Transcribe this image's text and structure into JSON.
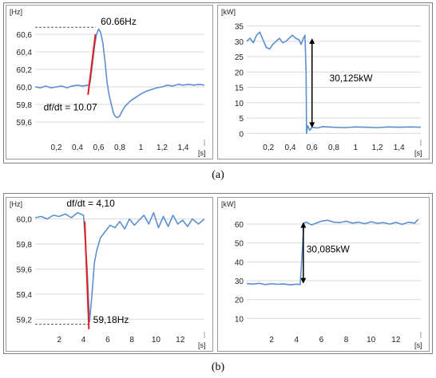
{
  "captions": {
    "a": "(a)",
    "b": "(b)"
  },
  "colors": {
    "series": "#5b8fd0",
    "tangent": "#e02020",
    "grid": "#d9d9d9",
    "arrow": "#000000",
    "guide": "#555555"
  },
  "chart_data": [
    {
      "id": "a-freq",
      "type": "line",
      "yunit": "[Hz]",
      "xunit": "[s]",
      "xlim": [
        0,
        1.6
      ],
      "ylim": [
        59.4,
        60.8
      ],
      "xticks": [
        "0,2",
        "0,4",
        "0,6",
        "0,8",
        "1",
        "1,2",
        "1,4"
      ],
      "xtickvals": [
        0.2,
        0.4,
        0.6,
        0.8,
        1.0,
        1.2,
        1.4
      ],
      "yticks": [
        "59,6",
        "59,8",
        "60,0",
        "60,2",
        "60,4",
        "60,6"
      ],
      "ytickvals": [
        59.6,
        59.8,
        60.0,
        60.2,
        60.4,
        60.6
      ],
      "grid": "horizontal",
      "series": [
        {
          "x": [
            0,
            0.05,
            0.1,
            0.15,
            0.2,
            0.25,
            0.3,
            0.35,
            0.4,
            0.45,
            0.5,
            0.52,
            0.54,
            0.56,
            0.58,
            0.6,
            0.62,
            0.64,
            0.66,
            0.68,
            0.7,
            0.72,
            0.74,
            0.76,
            0.78,
            0.8,
            0.82,
            0.85,
            0.9,
            0.95,
            1.0,
            1.05,
            1.1,
            1.15,
            1.2,
            1.25,
            1.3,
            1.35,
            1.4,
            1.45,
            1.5,
            1.55,
            1.6
          ],
          "y": [
            60.0,
            59.99,
            60.01,
            59.99,
            60.0,
            60.01,
            59.99,
            60.01,
            60.02,
            60.01,
            60.02,
            60.05,
            60.25,
            60.45,
            60.6,
            60.66,
            60.62,
            60.5,
            60.3,
            60.05,
            59.9,
            59.8,
            59.7,
            59.66,
            59.65,
            59.67,
            59.72,
            59.78,
            59.84,
            59.88,
            59.92,
            59.95,
            59.97,
            59.99,
            60.0,
            60.02,
            60.01,
            60.03,
            60.02,
            60.03,
            60.02,
            60.03,
            60.02
          ]
        }
      ],
      "tangent": {
        "x": [
          0.5,
          0.57
        ],
        "y": [
          59.91,
          60.6
        ]
      },
      "annotations": [
        {
          "text": "60.66Hz",
          "x": 0.62,
          "y": 60.71
        },
        {
          "text": "df/dt = 10.07",
          "x": 0.08,
          "y": 59.73
        }
      ],
      "guide_y": 60.68
    },
    {
      "id": "a-power",
      "type": "line",
      "yunit": "[kW]",
      "xunit": "[s]",
      "xlim": [
        0,
        1.6
      ],
      "ylim": [
        -2,
        38
      ],
      "xticks": [
        "0,2",
        "0,4",
        "0,6",
        "0,8",
        "1",
        "1,2",
        "1,4"
      ],
      "xtickvals": [
        0.2,
        0.4,
        0.6,
        0.8,
        1.0,
        1.2,
        1.4
      ],
      "yticks": [
        "0",
        "5",
        "10",
        "15",
        "20",
        "25",
        "30",
        "35"
      ],
      "ytickvals": [
        0,
        5,
        10,
        15,
        20,
        25,
        30,
        35
      ],
      "grid": "horizontal",
      "series": [
        {
          "x": [
            0,
            0.03,
            0.06,
            0.09,
            0.12,
            0.15,
            0.18,
            0.21,
            0.24,
            0.27,
            0.3,
            0.33,
            0.36,
            0.39,
            0.42,
            0.45,
            0.48,
            0.5,
            0.52,
            0.535,
            0.545,
            0.55,
            0.56,
            0.58,
            0.6,
            0.65,
            0.7,
            0.8,
            0.9,
            1.0,
            1.1,
            1.2,
            1.3,
            1.4,
            1.5,
            1.6
          ],
          "y": [
            30,
            31,
            29.5,
            32,
            33,
            30.5,
            28,
            27.5,
            29,
            30,
            31,
            29.5,
            30,
            31,
            32,
            31,
            30.5,
            29,
            31,
            32,
            20,
            0,
            2.5,
            1,
            2,
            1.8,
            2.2,
            2,
            1.9,
            2.1,
            2,
            1.9,
            2.1,
            2,
            2.1,
            2
          ]
        }
      ],
      "arrow": {
        "x": 0.6,
        "y1": 31,
        "y2": 1.8,
        "label": "30,125kW",
        "label_x": 0.76,
        "label_y": 17
      }
    },
    {
      "id": "b-freq",
      "type": "line",
      "yunit": "[Hz]",
      "xunit": "[s]",
      "xlim": [
        0,
        14
      ],
      "ylim": [
        59.1,
        60.08
      ],
      "xticks": [
        "2",
        "4",
        "6",
        "8",
        "10",
        "12"
      ],
      "xtickvals": [
        2,
        4,
        6,
        8,
        10,
        12
      ],
      "yticks": [
        "59,2",
        "59,4",
        "59,6",
        "59,8",
        "60,0"
      ],
      "ytickvals": [
        59.2,
        59.4,
        59.6,
        59.8,
        60.0
      ],
      "grid": "horizontal",
      "series": [
        {
          "x": [
            0,
            0.5,
            1,
            1.5,
            2,
            2.5,
            3,
            3.5,
            4,
            4.3,
            4.5,
            4.7,
            4.9,
            5.1,
            5.4,
            5.8,
            6.2,
            6.6,
            7,
            7.4,
            7.8,
            8.2,
            8.6,
            9,
            9.4,
            9.8,
            10.2,
            10.6,
            11,
            11.4,
            11.8,
            12.2,
            12.6,
            13,
            13.5,
            14
          ],
          "y": [
            60.01,
            60.02,
            60.0,
            60.03,
            60.02,
            60.04,
            60.01,
            60.05,
            60.03,
            59.6,
            59.18,
            59.4,
            59.65,
            59.75,
            59.85,
            59.9,
            59.95,
            59.93,
            59.98,
            59.92,
            60.0,
            59.95,
            59.99,
            60.03,
            59.96,
            60.05,
            59.93,
            60.02,
            59.94,
            60.03,
            59.96,
            59.99,
            59.94,
            60.0,
            59.96,
            60.0
          ]
        }
      ],
      "tangent": {
        "x": [
          4.1,
          4.45
        ],
        "y": [
          59.98,
          59.12
        ]
      },
      "annotations": [
        {
          "text": "df/dt = 4,10",
          "x": 2.6,
          "y": 60.1
        },
        {
          "text": "59,18Hz",
          "x": 4.8,
          "y": 59.17
        }
      ],
      "guide_y": 59.16
    },
    {
      "id": "b-power",
      "type": "line",
      "yunit": "[kW]",
      "xunit": "[s]",
      "xlim": [
        0,
        14
      ],
      "ylim": [
        3,
        68
      ],
      "xticks": [
        "2",
        "4",
        "6",
        "8",
        "10",
        "12"
      ],
      "xtickvals": [
        2,
        4,
        6,
        8,
        10,
        12
      ],
      "yticks": [
        "10",
        "20",
        "30",
        "40",
        "50",
        "60"
      ],
      "ytickvals": [
        10,
        20,
        30,
        40,
        50,
        60
      ],
      "grid": "horizontal",
      "series": [
        {
          "x": [
            0,
            0.5,
            1,
            1.5,
            2,
            2.5,
            3,
            3.5,
            4,
            4.3,
            4.6,
            4.8,
            5.2,
            5.6,
            6,
            6.5,
            7,
            7.5,
            8,
            8.5,
            9,
            9.5,
            10,
            10.5,
            11,
            11.5,
            12,
            12.5,
            13,
            13.5,
            13.8
          ],
          "y": [
            28.5,
            28.2,
            28.6,
            28,
            28.4,
            28.1,
            28.3,
            27.8,
            28.2,
            28,
            60.5,
            61,
            59.5,
            60.5,
            61.5,
            62,
            61,
            60.8,
            61.5,
            60.5,
            61,
            60.2,
            61.2,
            60.4,
            60.8,
            60,
            60.9,
            59.8,
            61,
            60.5,
            62.5
          ]
        }
      ],
      "arrow": {
        "x": 4.55,
        "y1": 61,
        "y2": 28.5,
        "label": "30,085kW",
        "label_x": 4.8,
        "label_y": 45
      }
    }
  ]
}
